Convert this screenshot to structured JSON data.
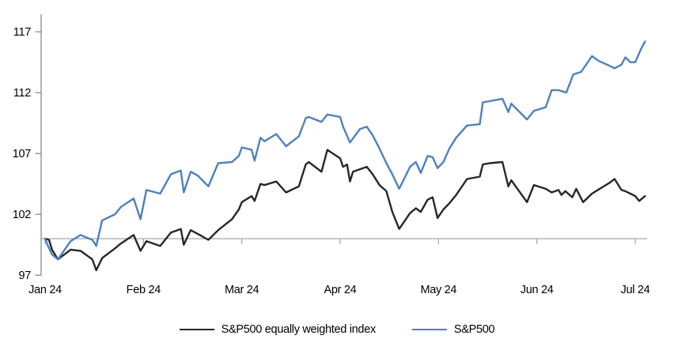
{
  "chart": {
    "background": "#ffffff",
    "axis_color": "#7f7f7f",
    "baseline_color": "#a6a6a6",
    "baseline_value": 100,
    "legend": {
      "equal_weight_label": "S&P500 equally weighted index",
      "sp500_label": "S&P500"
    }
  },
  "chart_data": {
    "type": "line",
    "title": "",
    "xlabel": "",
    "ylabel": "",
    "x_unit": "months since 1 Jan 2024 (0 = Jan 1, 6 = Jul 1)",
    "xlim": [
      0,
      6.2
    ],
    "ylim": [
      97,
      118.6
    ],
    "y_ticks": [
      97,
      102,
      107,
      112,
      117
    ],
    "x_tick_labels": [
      "Jan 24",
      "Feb 24",
      "Mar 24",
      "Apr 24",
      "May 24",
      "Jun 24",
      "Jul 24"
    ],
    "grid": false,
    "baseline": 100,
    "legend_position": "bottom-center",
    "series": [
      {
        "name": "S&P500 equally weighted index",
        "color": "#272727",
        "points": [
          [
            0,
            100
          ],
          [
            0.04,
            99.9
          ],
          [
            0.07,
            99.1
          ],
          [
            0.13,
            98.3
          ],
          [
            0.26,
            99.1
          ],
          [
            0.36,
            99.0
          ],
          [
            0.48,
            98.3
          ],
          [
            0.52,
            97.4
          ],
          [
            0.58,
            98.4
          ],
          [
            0.71,
            99.2
          ],
          [
            0.77,
            99.6
          ],
          [
            0.9,
            100.3
          ],
          [
            0.97,
            99.0
          ],
          [
            1.03,
            99.8
          ],
          [
            1.17,
            99.4
          ],
          [
            1.28,
            100.5
          ],
          [
            1.38,
            100.8
          ],
          [
            1.41,
            99.5
          ],
          [
            1.48,
            100.7
          ],
          [
            1.55,
            100.4
          ],
          [
            1.66,
            99.9
          ],
          [
            1.76,
            100.7
          ],
          [
            1.9,
            101.6
          ],
          [
            1.97,
            102.4
          ],
          [
            2.0,
            103.0
          ],
          [
            2.1,
            103.5
          ],
          [
            2.13,
            103.1
          ],
          [
            2.19,
            104.5
          ],
          [
            2.23,
            104.4
          ],
          [
            2.35,
            104.7
          ],
          [
            2.45,
            103.8
          ],
          [
            2.58,
            104.3
          ],
          [
            2.65,
            106.1
          ],
          [
            2.68,
            106.3
          ],
          [
            2.81,
            105.5
          ],
          [
            2.87,
            107.3
          ],
          [
            3.0,
            106.6
          ],
          [
            3.03,
            105.9
          ],
          [
            3.07,
            106.1
          ],
          [
            3.1,
            104.7
          ],
          [
            3.13,
            105.5
          ],
          [
            3.27,
            105.9
          ],
          [
            3.33,
            105.3
          ],
          [
            3.4,
            104.4
          ],
          [
            3.47,
            103.9
          ],
          [
            3.53,
            102.2
          ],
          [
            3.6,
            100.8
          ],
          [
            3.71,
            102.1
          ],
          [
            3.77,
            102.5
          ],
          [
            3.82,
            102.2
          ],
          [
            3.89,
            103.2
          ],
          [
            3.94,
            103.4
          ],
          [
            3.99,
            101.7
          ],
          [
            4.05,
            102.4
          ],
          [
            4.11,
            102.9
          ],
          [
            4.18,
            103.6
          ],
          [
            4.29,
            104.9
          ],
          [
            4.42,
            105.1
          ],
          [
            4.45,
            106.1
          ],
          [
            4.52,
            106.2
          ],
          [
            4.65,
            106.3
          ],
          [
            4.71,
            104.3
          ],
          [
            4.74,
            104.8
          ],
          [
            4.9,
            103.0
          ],
          [
            4.97,
            104.4
          ],
          [
            5.09,
            104.1
          ],
          [
            5.15,
            103.8
          ],
          [
            5.22,
            104.0
          ],
          [
            5.25,
            103.6
          ],
          [
            5.29,
            103.9
          ],
          [
            5.36,
            103.4
          ],
          [
            5.4,
            104.1
          ],
          [
            5.47,
            103.0
          ],
          [
            5.56,
            103.7
          ],
          [
            5.66,
            104.2
          ],
          [
            5.74,
            104.6
          ],
          [
            5.79,
            104.9
          ],
          [
            5.86,
            104.0
          ],
          [
            5.9,
            103.9
          ],
          [
            5.95,
            103.7
          ],
          [
            6.0,
            103.5
          ],
          [
            6.04,
            103.1
          ],
          [
            6.1,
            103.5
          ]
        ]
      },
      {
        "name": "S&P500",
        "color": "#4f81bd",
        "points": [
          [
            0,
            100
          ],
          [
            0.03,
            99.4
          ],
          [
            0.07,
            98.7
          ],
          [
            0.13,
            98.3
          ],
          [
            0.26,
            99.8
          ],
          [
            0.36,
            100.3
          ],
          [
            0.48,
            99.9
          ],
          [
            0.52,
            99.4
          ],
          [
            0.58,
            101.5
          ],
          [
            0.71,
            102.0
          ],
          [
            0.77,
            102.6
          ],
          [
            0.9,
            103.3
          ],
          [
            0.97,
            101.6
          ],
          [
            1.03,
            104.0
          ],
          [
            1.17,
            103.7
          ],
          [
            1.28,
            105.3
          ],
          [
            1.38,
            105.6
          ],
          [
            1.41,
            103.8
          ],
          [
            1.48,
            105.5
          ],
          [
            1.55,
            105.2
          ],
          [
            1.66,
            104.3
          ],
          [
            1.76,
            106.2
          ],
          [
            1.9,
            106.3
          ],
          [
            1.97,
            106.8
          ],
          [
            2.0,
            107.5
          ],
          [
            2.1,
            107.3
          ],
          [
            2.13,
            106.4
          ],
          [
            2.19,
            108.3
          ],
          [
            2.23,
            108.0
          ],
          [
            2.35,
            108.6
          ],
          [
            2.45,
            107.6
          ],
          [
            2.58,
            108.4
          ],
          [
            2.65,
            109.9
          ],
          [
            2.68,
            110.0
          ],
          [
            2.81,
            109.6
          ],
          [
            2.87,
            110.2
          ],
          [
            3.0,
            110.0
          ],
          [
            3.03,
            109.2
          ],
          [
            3.1,
            107.9
          ],
          [
            3.2,
            109.0
          ],
          [
            3.27,
            109.2
          ],
          [
            3.33,
            108.5
          ],
          [
            3.4,
            107.4
          ],
          [
            3.47,
            106.2
          ],
          [
            3.53,
            105.3
          ],
          [
            3.6,
            104.1
          ],
          [
            3.71,
            105.9
          ],
          [
            3.77,
            106.3
          ],
          [
            3.82,
            105.4
          ],
          [
            3.89,
            106.8
          ],
          [
            3.94,
            106.7
          ],
          [
            3.99,
            105.8
          ],
          [
            4.05,
            106.3
          ],
          [
            4.11,
            107.4
          ],
          [
            4.18,
            108.3
          ],
          [
            4.29,
            109.3
          ],
          [
            4.42,
            109.4
          ],
          [
            4.45,
            111.2
          ],
          [
            4.52,
            111.3
          ],
          [
            4.65,
            111.5
          ],
          [
            4.71,
            110.4
          ],
          [
            4.74,
            111.1
          ],
          [
            4.9,
            109.8
          ],
          [
            4.97,
            110.5
          ],
          [
            5.09,
            110.8
          ],
          [
            5.15,
            112.2
          ],
          [
            5.22,
            112.2
          ],
          [
            5.3,
            112.0
          ],
          [
            5.37,
            113.5
          ],
          [
            5.45,
            113.7
          ],
          [
            5.56,
            115.0
          ],
          [
            5.63,
            114.6
          ],
          [
            5.74,
            114.2
          ],
          [
            5.79,
            114.0
          ],
          [
            5.86,
            114.3
          ],
          [
            5.9,
            114.9
          ],
          [
            5.95,
            114.5
          ],
          [
            6.0,
            114.5
          ],
          [
            6.06,
            115.6
          ],
          [
            6.1,
            116.2
          ]
        ]
      }
    ]
  }
}
